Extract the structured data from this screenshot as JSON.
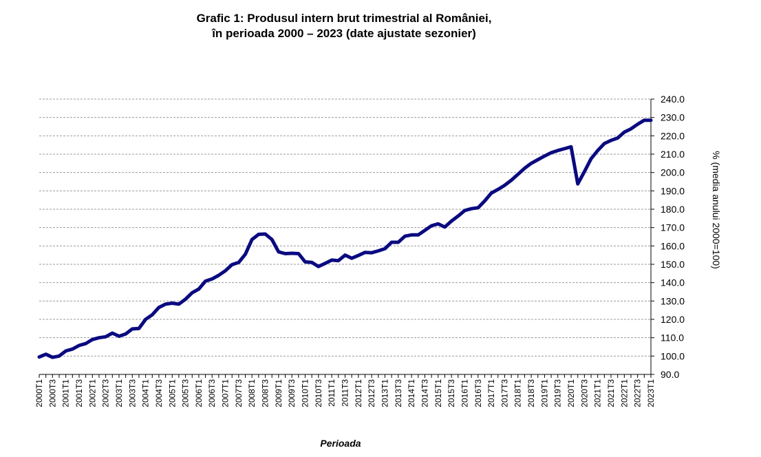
{
  "chart_data": {
    "type": "line",
    "title_line1": "Grafic 1: Produsul intern brut trimestrial al României,",
    "title_line2": "în perioada 2000 – 2023 (date ajustate sezonier)",
    "xlabel": "Perioada",
    "ylabel": "% (media anului 2000=100)",
    "ylim": [
      90,
      240
    ],
    "ytick_step": 10,
    "yaxis_side": "right",
    "grid": true,
    "x_tick_labels": [
      "2000T1",
      "2000T3",
      "2001T1",
      "2001T3",
      "2002T1",
      "2002T3",
      "2003T1",
      "2003T3",
      "2004T1",
      "2004T3",
      "2005T1",
      "2005T3",
      "2006T1",
      "2006T3",
      "2007T1",
      "2007T3",
      "2008T1",
      "2008T3",
      "2009T1",
      "2009T3",
      "2010T1",
      "2010T3",
      "2011T1",
      "2011T3",
      "2012T1",
      "2012T3",
      "2013T1",
      "2013T3",
      "2014T1",
      "2014T3",
      "2015T1",
      "2015T3",
      "2016T1",
      "2016T3",
      "2017T1",
      "2017T3",
      "2018T1",
      "2018T3",
      "2019T1",
      "2019T3",
      "2020T1",
      "2020T3",
      "2021T1",
      "2021T3",
      "2022T1",
      "2022T3",
      "2023T1"
    ],
    "series": [
      {
        "color": "#0a0a80",
        "x": [
          "2000T1",
          "2000T2",
          "2000T3",
          "2000T4",
          "2001T1",
          "2001T2",
          "2001T3",
          "2001T4",
          "2002T1",
          "2002T2",
          "2002T3",
          "2002T4",
          "2003T1",
          "2003T2",
          "2003T3",
          "2003T4",
          "2004T1",
          "2004T2",
          "2004T3",
          "2004T4",
          "2005T1",
          "2005T2",
          "2005T3",
          "2005T4",
          "2006T1",
          "2006T2",
          "2006T3",
          "2006T4",
          "2007T1",
          "2007T2",
          "2007T3",
          "2007T4",
          "2008T1",
          "2008T2",
          "2008T3",
          "2008T4",
          "2009T1",
          "2009T2",
          "2009T3",
          "2009T4",
          "2010T1",
          "2010T2",
          "2010T3",
          "2010T4",
          "2011T1",
          "2011T2",
          "2011T3",
          "2011T4",
          "2012T1",
          "2012T2",
          "2012T3",
          "2012T4",
          "2013T1",
          "2013T2",
          "2013T3",
          "2013T4",
          "2014T1",
          "2014T2",
          "2014T3",
          "2014T4",
          "2015T1",
          "2015T2",
          "2015T3",
          "2015T4",
          "2016T1",
          "2016T2",
          "2016T3",
          "2016T4",
          "2017T1",
          "2017T2",
          "2017T3",
          "2017T4",
          "2018T1",
          "2018T2",
          "2018T3",
          "2018T4",
          "2019T1",
          "2019T2",
          "2019T3",
          "2019T4",
          "2020T1",
          "2020T2",
          "2020T3",
          "2020T4",
          "2021T1",
          "2021T2",
          "2021T3",
          "2021T4",
          "2022T1",
          "2022T2",
          "2022T3",
          "2022T4",
          "2023T1"
        ],
        "values": [
          99.5,
          101.0,
          99.3,
          100.0,
          102.8,
          103.8,
          105.8,
          106.8,
          109.0,
          110.0,
          110.5,
          112.5,
          110.8,
          112.0,
          114.8,
          115.0,
          120.0,
          122.5,
          126.5,
          128.3,
          128.8,
          128.3,
          131.0,
          134.5,
          136.5,
          140.8,
          142.0,
          144.0,
          146.5,
          149.8,
          151.0,
          155.5,
          163.5,
          166.3,
          166.5,
          163.5,
          156.8,
          155.8,
          156.0,
          155.8,
          151.3,
          151.0,
          148.8,
          150.5,
          152.3,
          152.0,
          155.0,
          153.3,
          154.8,
          156.5,
          156.3,
          157.3,
          158.5,
          162.0,
          162.0,
          165.3,
          166.0,
          166.0,
          168.5,
          171.0,
          172.0,
          170.3,
          173.5,
          176.3,
          179.3,
          180.3,
          180.8,
          184.5,
          188.8,
          190.8,
          193.0,
          195.8,
          199.0,
          202.3,
          205.0,
          207.0,
          209.0,
          210.8,
          212.0,
          213.0,
          214.0,
          193.8,
          200.5,
          207.5,
          212.0,
          215.8,
          217.5,
          218.8,
          222.0,
          223.8,
          226.3,
          228.5,
          228.5
        ]
      }
    ]
  }
}
